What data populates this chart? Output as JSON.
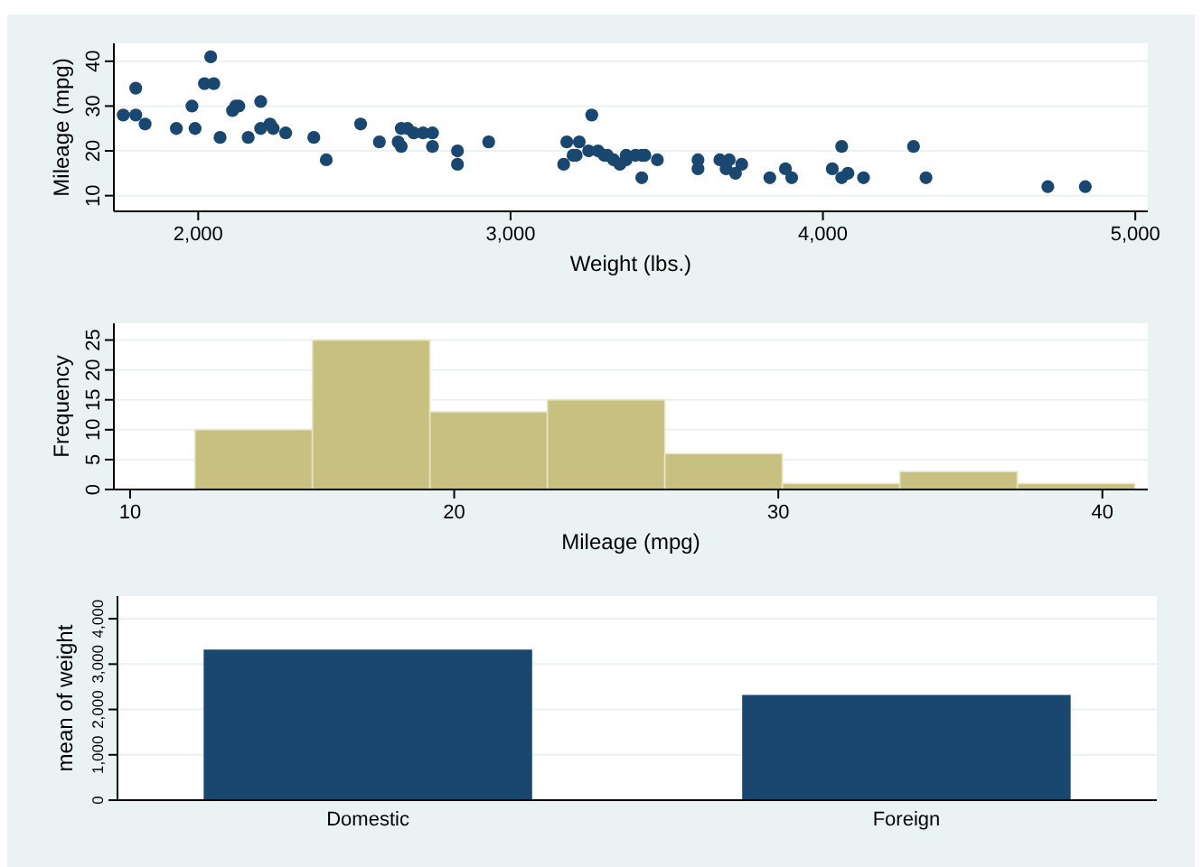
{
  "chart_data": [
    {
      "type": "scatter",
      "xlabel": "Weight (lbs.)",
      "ylabel": "Mileage (mpg)",
      "color": "#1a476f",
      "marker": "circle",
      "grid": "y",
      "x": [
        2930,
        3350,
        2640,
        3250,
        4080,
        3670,
        2230,
        3280,
        3880,
        3400,
        4330,
        3900,
        4290,
        2110,
        3690,
        3180,
        3220,
        2750,
        3430,
        2120,
        3600,
        3600,
        3740,
        1800,
        2650,
        4840,
        4720,
        3830,
        2580,
        4060,
        3720,
        3370,
        4130,
        2830,
        4060,
        3310,
        3300,
        3370,
        2720,
        4030,
        3260,
        1800,
        2200,
        2520,
        3330,
        3700,
        3470,
        3210,
        3200,
        3420,
        2690,
        2830,
        2070,
        2650,
        2370,
        2020,
        2280,
        2750,
        2130,
        2240,
        1760,
        1980,
        3420,
        1830,
        2050,
        2410,
        2200,
        2670,
        2160,
        2040,
        1930,
        1990,
        3170
      ],
      "values": [
        22,
        17,
        22,
        20,
        15,
        18,
        26,
        20,
        16,
        19,
        14,
        14,
        21,
        29,
        16,
        22,
        22,
        24,
        19,
        30,
        18,
        16,
        17,
        28,
        21,
        12,
        12,
        14,
        22,
        14,
        15,
        18,
        14,
        20,
        21,
        19,
        19,
        19,
        24,
        16,
        28,
        34,
        25,
        26,
        18,
        18,
        18,
        19,
        19,
        19,
        24,
        17,
        23,
        25,
        23,
        35,
        24,
        21,
        30,
        25,
        28,
        30,
        14,
        26,
        35,
        18,
        31,
        25,
        23,
        41,
        25,
        25,
        17
      ],
      "xlim": [
        1730,
        5040
      ],
      "ylim": [
        6.5,
        44
      ],
      "xticks": [
        {
          "value": 2000,
          "label": "2,000"
        },
        {
          "value": 3000,
          "label": "3,000"
        },
        {
          "value": 4000,
          "label": "4,000"
        },
        {
          "value": 5000,
          "label": "5,000"
        }
      ],
      "yticks": [
        10,
        20,
        30,
        40
      ]
    },
    {
      "type": "histogram",
      "xlabel": "Mileage (mpg)",
      "ylabel": "Frequency",
      "color": "#c8c080",
      "grid": "y",
      "bins": [
        12,
        15.625,
        19.25,
        22.875,
        26.5,
        30.125,
        33.75,
        37.375,
        41
      ],
      "values": [
        10,
        25,
        13,
        15,
        6,
        1,
        3,
        1
      ],
      "xlim": [
        9.5,
        41.4
      ],
      "ylim": [
        0,
        27.8
      ],
      "xticks": [
        10,
        20,
        30,
        40
      ],
      "yticks": [
        0,
        5,
        10,
        15,
        20,
        25
      ]
    },
    {
      "type": "bar",
      "ylabel": "mean of weight",
      "color": "#1a476f",
      "grid": "y",
      "categories": [
        "Domestic",
        "Foreign"
      ],
      "values": [
        3320,
        2320
      ],
      "ylim": [
        0,
        4500
      ],
      "yticks": [
        0,
        {
          "value": 1000,
          "label": "1,000"
        },
        {
          "value": 2000,
          "label": "2,000"
        },
        {
          "value": 3000,
          "label": "3,000"
        },
        {
          "value": 4000,
          "label": "4,000"
        }
      ]
    }
  ]
}
